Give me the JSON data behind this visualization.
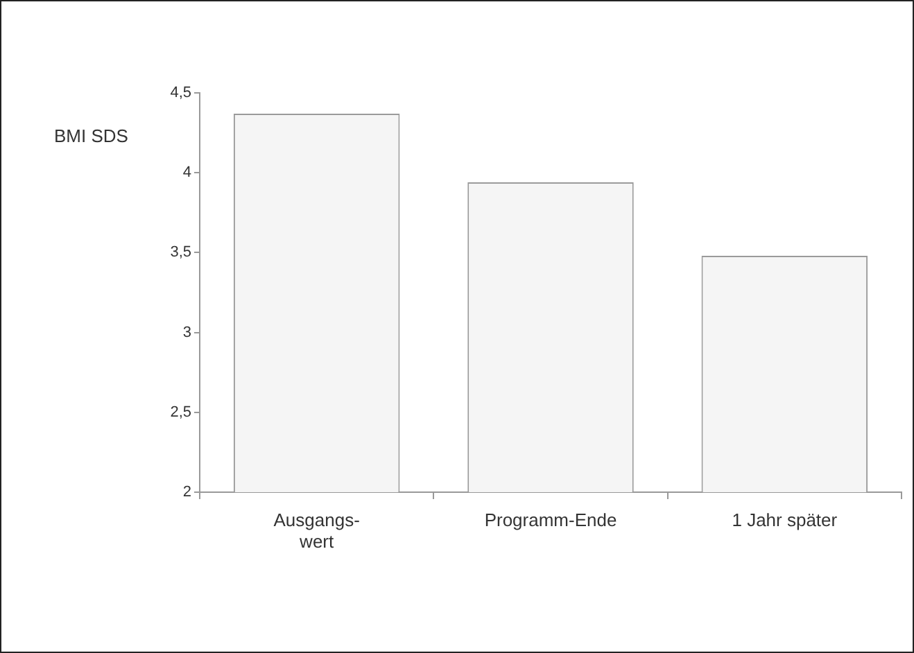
{
  "chart_data": {
    "type": "bar",
    "ylabel": "BMI SDS",
    "categories": [
      "Ausgangs-\nwert",
      "Programm-Ende",
      "1 Jahr später"
    ],
    "values": [
      4.37,
      3.94,
      3.48
    ],
    "color": "#f5f5f5",
    "ylim": [
      2,
      4.5
    ],
    "yticks": [
      2,
      {
        "value": 2.5,
        "label": "2,5"
      },
      3,
      {
        "value": 3.5,
        "label": "3,5"
      },
      4,
      {
        "value": 4.5,
        "label": "4,5"
      }
    ],
    "grid": false,
    "legend": false
  }
}
